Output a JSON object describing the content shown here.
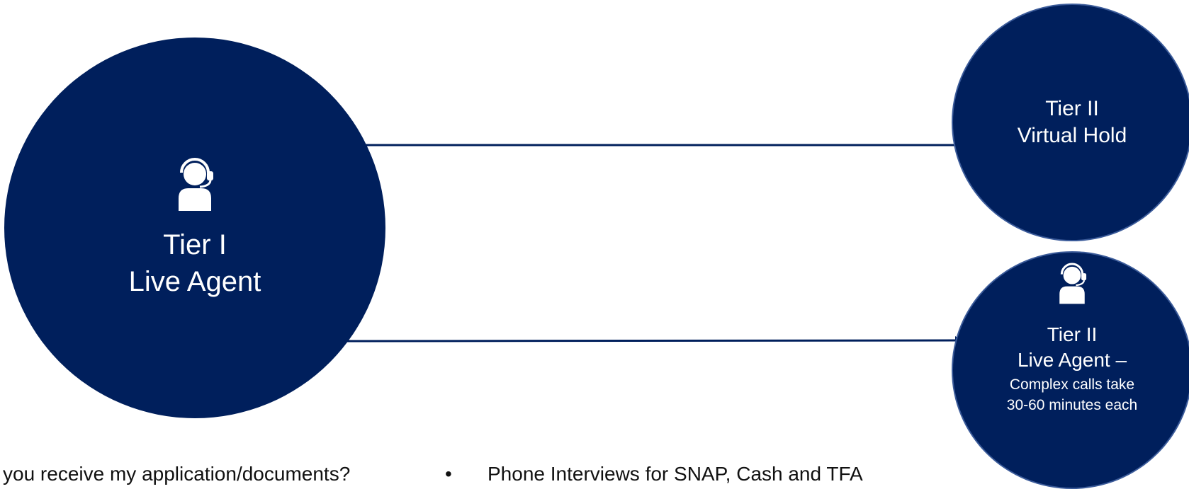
{
  "diagram": {
    "tier1": {
      "line1": "Tier I",
      "line2": "Live Agent",
      "icon": "headset-agent-icon"
    },
    "tier2_virtual": {
      "line1": "Tier II",
      "line2": "Virtual Hold"
    },
    "tier2_live": {
      "line1": "Tier II",
      "line2": "Live Agent –",
      "detail": "Complex calls take 30-60 minutes each",
      "icon": "headset-agent-icon"
    },
    "colors": {
      "circle_fill": "#001f5c",
      "connector": "#001f5c"
    }
  },
  "bottom_text": {
    "left": "you receive my application/documents?",
    "bullet": "•",
    "right": "Phone Interviews for SNAP, Cash and TFA"
  }
}
